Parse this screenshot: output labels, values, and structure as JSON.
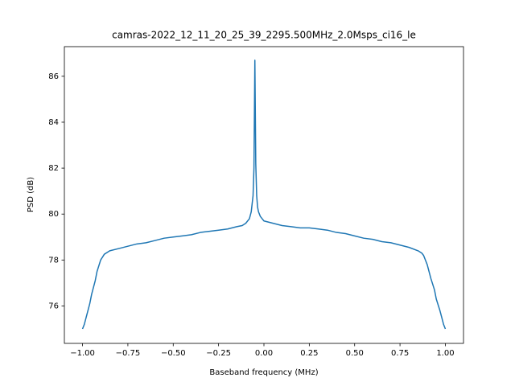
{
  "chart_data": {
    "type": "line",
    "title": "camras-2022_12_11_20_25_39_2295.500MHz_2.0Msps_ci16_le",
    "x_label": "Baseband frequency (MHz)",
    "y_label": "PSD (dB)",
    "color": "#1f77b4",
    "x": [
      -1.0,
      -0.99,
      -0.98,
      -0.96,
      -0.95,
      -0.93,
      -0.92,
      -0.9,
      -0.88,
      -0.85,
      -0.8,
      -0.75,
      -0.7,
      -0.65,
      -0.6,
      -0.55,
      -0.5,
      -0.45,
      -0.4,
      -0.35,
      -0.3,
      -0.25,
      -0.2,
      -0.15,
      -0.12,
      -0.1,
      -0.08,
      -0.07,
      -0.06,
      -0.055,
      -0.05,
      -0.045,
      -0.04,
      -0.035,
      -0.03,
      -0.02,
      -0.01,
      0.0,
      0.05,
      0.1,
      0.15,
      0.2,
      0.25,
      0.3,
      0.35,
      0.4,
      0.45,
      0.5,
      0.55,
      0.6,
      0.65,
      0.7,
      0.75,
      0.8,
      0.85,
      0.87,
      0.88,
      0.9,
      0.92,
      0.94,
      0.95,
      0.97,
      0.98,
      0.99,
      1.0
    ],
    "values": [
      75.0,
      75.2,
      75.5,
      76.1,
      76.5,
      77.1,
      77.5,
      78.0,
      78.25,
      78.4,
      78.5,
      78.6,
      78.7,
      78.75,
      78.85,
      78.95,
      79.0,
      79.05,
      79.1,
      79.2,
      79.25,
      79.3,
      79.35,
      79.45,
      79.5,
      79.6,
      79.8,
      80.1,
      80.8,
      82.0,
      86.7,
      82.2,
      80.8,
      80.3,
      80.1,
      79.9,
      79.8,
      79.7,
      79.6,
      79.5,
      79.45,
      79.4,
      79.4,
      79.35,
      79.3,
      79.2,
      79.15,
      79.05,
      78.95,
      78.9,
      78.8,
      78.75,
      78.65,
      78.55,
      78.4,
      78.3,
      78.2,
      77.8,
      77.2,
      76.7,
      76.3,
      75.8,
      75.5,
      75.2,
      75.0
    ],
    "xlim": [
      -1.1,
      1.1
    ],
    "ylim": [
      74.37,
      87.29
    ],
    "xticks": [
      {
        "value": -1,
        "label": "−1.00"
      },
      {
        "value": -0.75,
        "label": "−0.75"
      },
      {
        "value": -0.5,
        "label": "−0.50"
      },
      {
        "value": -0.25,
        "label": "−0.25"
      },
      {
        "value": 0,
        "label": "0.00"
      },
      {
        "value": 0.25,
        "label": "0.25"
      },
      {
        "value": 0.5,
        "label": "0.50"
      },
      {
        "value": 0.75,
        "label": "0.75"
      },
      {
        "value": 1,
        "label": "1.00"
      }
    ],
    "yticks": [
      76,
      78,
      80,
      82,
      84,
      86
    ],
    "grid": false
  }
}
